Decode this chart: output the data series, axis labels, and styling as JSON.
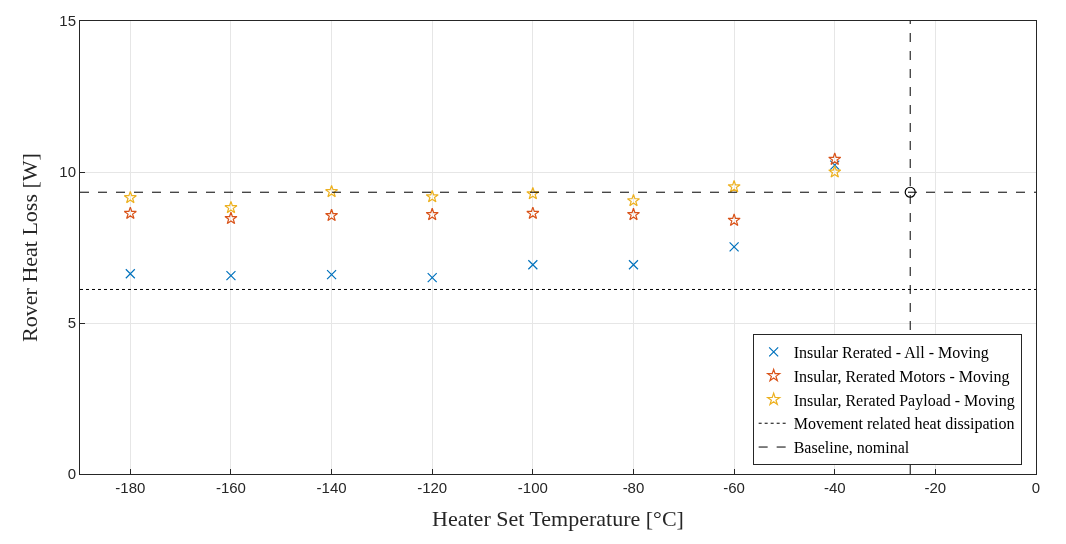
{
  "chart_data": {
    "type": "scatter",
    "xlabel": "Heater Set Temperature [°C]",
    "ylabel": "Rover Heat Loss [W]",
    "x": [
      -180,
      -160,
      -140,
      -120,
      -100,
      -80,
      -60,
      -40
    ],
    "series": [
      {
        "name": "Insular Rerated - All - Moving",
        "color": "#0072bd",
        "marker": "cross",
        "values": [
          6.63,
          6.57,
          6.6,
          6.5,
          6.93,
          6.93,
          7.52,
          10.23
        ]
      },
      {
        "name": "Insular, Rerated Motors - Moving",
        "color": "#d95319",
        "marker": "star",
        "values": [
          8.63,
          8.46,
          8.56,
          8.59,
          8.63,
          8.59,
          8.4,
          10.42
        ]
      },
      {
        "name": "Insular, Rerated Payload - Moving",
        "color": "#edb120",
        "marker": "star",
        "values": [
          9.15,
          8.82,
          9.35,
          9.18,
          9.28,
          9.05,
          9.51,
          10.0
        ]
      },
      {
        "color": "#000000",
        "marker": "circle",
        "x": [
          -25
        ],
        "values": [
          9.33
        ]
      }
    ],
    "ref_lines": [
      {
        "axis": "y",
        "value": 6.11,
        "label": "Movement related heat dissipation",
        "color": "#000000",
        "line_style": "dotted"
      },
      {
        "axis": "y",
        "value": 9.33,
        "label": "Baseline, nominal",
        "color": "#000000",
        "line_style": "dashed"
      },
      {
        "axis": "x",
        "value": -25,
        "label": null,
        "color": "#000000",
        "line_style": "dashed"
      }
    ],
    "xlim": [
      -190,
      0
    ],
    "xticks": [
      -180,
      -160,
      -140,
      -120,
      -100,
      -80,
      -60,
      -40,
      -20,
      0
    ],
    "ylim": [
      0,
      15
    ],
    "yticks": [
      0,
      5,
      10,
      15
    ],
    "grid": true,
    "legend": "bottom right"
  }
}
